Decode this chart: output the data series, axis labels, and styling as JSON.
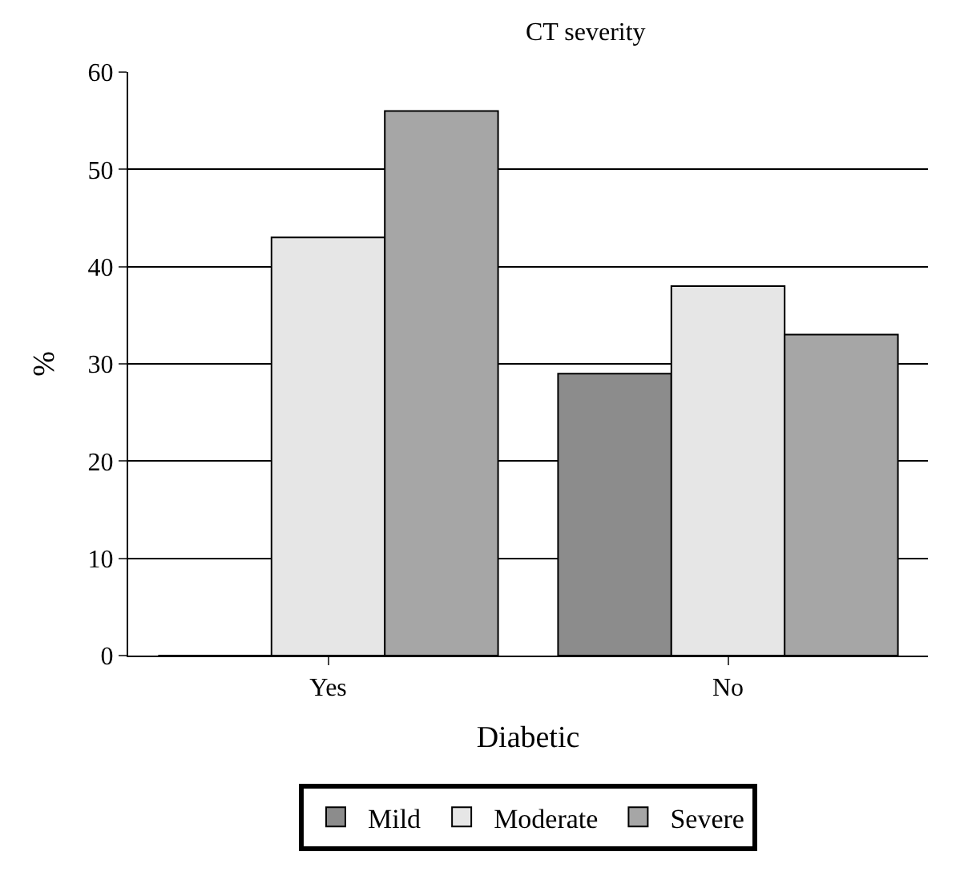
{
  "chart_data": {
    "type": "bar",
    "title": "CT severity",
    "xlabel": "Diabetic",
    "ylabel": "%",
    "categories": [
      "Yes",
      "No"
    ],
    "series": [
      {
        "name": "Mild",
        "color": "#8c8c8c",
        "values": [
          0,
          29
        ]
      },
      {
        "name": "Moderate",
        "color": "#e6e6e6",
        "values": [
          43,
          38
        ]
      },
      {
        "name": "Severe",
        "color": "#a6a6a6",
        "values": [
          56,
          33
        ]
      }
    ],
    "ylim": [
      0,
      60
    ],
    "yticks": [
      0,
      10,
      20,
      30,
      40,
      50,
      60
    ],
    "grid": "y",
    "legend": "bottom"
  }
}
